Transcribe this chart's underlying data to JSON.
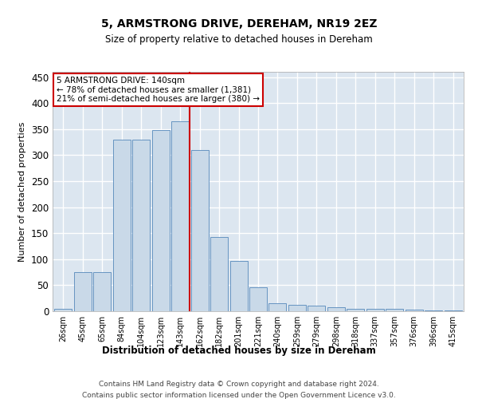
{
  "title1": "5, ARMSTRONG DRIVE, DEREHAM, NR19 2EZ",
  "title2": "Size of property relative to detached houses in Dereham",
  "xlabel": "Distribution of detached houses by size in Dereham",
  "ylabel": "Number of detached properties",
  "categories": [
    "26sqm",
    "45sqm",
    "65sqm",
    "84sqm",
    "104sqm",
    "123sqm",
    "143sqm",
    "162sqm",
    "182sqm",
    "201sqm",
    "221sqm",
    "240sqm",
    "259sqm",
    "279sqm",
    "298sqm",
    "318sqm",
    "337sqm",
    "357sqm",
    "376sqm",
    "396sqm",
    "415sqm"
  ],
  "values": [
    5,
    75,
    75,
    330,
    330,
    348,
    365,
    310,
    143,
    97,
    46,
    15,
    13,
    10,
    8,
    5,
    5,
    4,
    3,
    2,
    2
  ],
  "bar_color": "#c9d9e8",
  "bar_edge_color": "#5588bb",
  "background_color": "#dce6f0",
  "grid_color": "#ffffff",
  "red_line_x": 6.5,
  "annotation_text": "5 ARMSTRONG DRIVE: 140sqm\n← 78% of detached houses are smaller (1,381)\n21% of semi-detached houses are larger (380) →",
  "annotation_box_color": "#ffffff",
  "annotation_box_edge_color": "#cc0000",
  "footer1": "Contains HM Land Registry data © Crown copyright and database right 2024.",
  "footer2": "Contains public sector information licensed under the Open Government Licence v3.0.",
  "ylim": [
    0,
    460
  ],
  "yticks": [
    0,
    50,
    100,
    150,
    200,
    250,
    300,
    350,
    400,
    450
  ]
}
